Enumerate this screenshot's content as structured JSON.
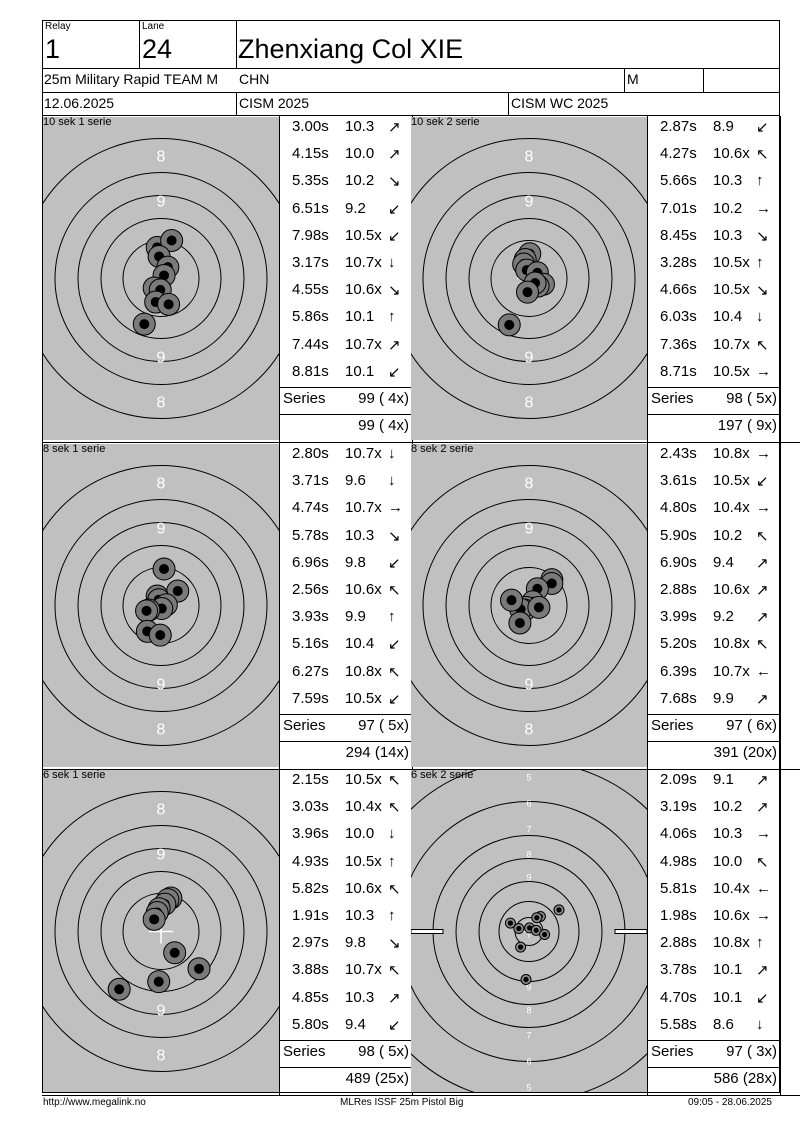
{
  "header": {
    "relay_label": "Relay",
    "relay": "1",
    "lane_label": "Lane",
    "lane": "24",
    "name": "Zhenxiang Col XIE",
    "event": "25m Military Rapid TEAM M",
    "country": "CHN",
    "gender": "M",
    "date": "12.06.2025",
    "competition": "CISM 2025",
    "match": "CISM WC 2025"
  },
  "series": [
    {
      "title": "10 sek 1 serie",
      "shots": [
        {
          "t": "3.00s",
          "v": "10.3",
          "dir": "↗"
        },
        {
          "t": "4.15s",
          "v": "10.0",
          "dir": "↗"
        },
        {
          "t": "5.35s",
          "v": "10.2",
          "dir": "↘"
        },
        {
          "t": "6.51s",
          "v": "9.2",
          "dir": "↙"
        },
        {
          "t": "7.98s",
          "v": "10.5x",
          "dir": "↙"
        },
        {
          "t": "3.17s",
          "v": "10.7x",
          "dir": "↓"
        },
        {
          "t": "4.55s",
          "v": "10.6x",
          "dir": "↘"
        },
        {
          "t": "5.86s",
          "v": "10.1",
          "dir": "↑"
        },
        {
          "t": "7.44s",
          "v": "10.7x",
          "dir": "↗"
        },
        {
          "t": "8.81s",
          "v": "10.1",
          "dir": "↙"
        }
      ],
      "series_label": "Series",
      "series_total": "99 ( 4x)",
      "cumulative": "99 ( 4x)",
      "impacts": [
        [
          -0.1,
          0.82
        ],
        [
          0.28,
          1.0
        ],
        [
          -0.05,
          0.58
        ],
        [
          0.18,
          0.3
        ],
        [
          0.08,
          0.08
        ],
        [
          -0.18,
          -0.25
        ],
        [
          -0.02,
          -0.3
        ],
        [
          -0.14,
          -0.62
        ],
        [
          0.2,
          -0.68
        ],
        [
          -0.44,
          -1.2
        ]
      ]
    },
    {
      "title": "10 sek 2 serie",
      "shots": [
        {
          "t": "2.87s",
          "v": "8.9",
          "dir": "↙"
        },
        {
          "t": "4.27s",
          "v": "10.6x",
          "dir": "↖"
        },
        {
          "t": "5.66s",
          "v": "10.3",
          "dir": "↑"
        },
        {
          "t": "7.01s",
          "v": "10.2",
          "dir": "→"
        },
        {
          "t": "8.45s",
          "v": "10.3",
          "dir": "↘"
        },
        {
          "t": "3.28s",
          "v": "10.5x",
          "dir": "↑"
        },
        {
          "t": "4.66s",
          "v": "10.5x",
          "dir": "↘"
        },
        {
          "t": "6.03s",
          "v": "10.4",
          "dir": "↓"
        },
        {
          "t": "7.36s",
          "v": "10.7x",
          "dir": "↖"
        },
        {
          "t": "8.71s",
          "v": "10.5x",
          "dir": "→"
        }
      ],
      "series_label": "Series",
      "series_total": "98 ( 5x)",
      "cumulative": "197 ( 9x)",
      "impacts": [
        [
          0.02,
          0.65
        ],
        [
          -0.1,
          0.5
        ],
        [
          -0.14,
          0.38
        ],
        [
          -0.06,
          0.22
        ],
        [
          0.22,
          0.15
        ],
        [
          0.38,
          -0.15
        ],
        [
          0.24,
          -0.2
        ],
        [
          0.16,
          -0.12
        ],
        [
          -0.04,
          -0.36
        ],
        [
          -0.52,
          -1.22
        ]
      ]
    },
    {
      "title": "8 sek 1 serie",
      "shots": [
        {
          "t": "2.80s",
          "v": "10.7x",
          "dir": "↓"
        },
        {
          "t": "3.71s",
          "v": "9.6",
          "dir": "↓"
        },
        {
          "t": "4.74s",
          "v": "10.7x",
          "dir": "→"
        },
        {
          "t": "5.78s",
          "v": "10.3",
          "dir": "↘"
        },
        {
          "t": "6.96s",
          "v": "9.8",
          "dir": "↙"
        },
        {
          "t": "2.56s",
          "v": "10.6x",
          "dir": "↖"
        },
        {
          "t": "3.93s",
          "v": "9.9",
          "dir": "↑"
        },
        {
          "t": "5.16s",
          "v": "10.4",
          "dir": "↙"
        },
        {
          "t": "6.27s",
          "v": "10.8x",
          "dir": "↖"
        },
        {
          "t": "7.59s",
          "v": "10.5x",
          "dir": "↙"
        }
      ],
      "series_label": "Series",
      "series_total": "97 ( 5x)",
      "cumulative": "294 (14x)",
      "impacts": [
        [
          0.08,
          0.96
        ],
        [
          0.44,
          0.38
        ],
        [
          -0.1,
          0.25
        ],
        [
          -0.06,
          0.15
        ],
        [
          0.14,
          0.02
        ],
        [
          0.02,
          -0.08
        ],
        [
          -0.32,
          -0.12
        ],
        [
          -0.38,
          -0.14
        ],
        [
          -0.36,
          -0.68
        ],
        [
          -0.02,
          -0.78
        ]
      ]
    },
    {
      "title": "8 sek 2 serie",
      "shots": [
        {
          "t": "2.43s",
          "v": "10.8x",
          "dir": "→"
        },
        {
          "t": "3.61s",
          "v": "10.5x",
          "dir": "↙"
        },
        {
          "t": "4.80s",
          "v": "10.4x",
          "dir": "→"
        },
        {
          "t": "5.90s",
          "v": "10.2",
          "dir": "↖"
        },
        {
          "t": "6.90s",
          "v": "9.4",
          "dir": "↗"
        },
        {
          "t": "2.88s",
          "v": "10.6x",
          "dir": "↗"
        },
        {
          "t": "3.99s",
          "v": "9.2",
          "dir": "↗"
        },
        {
          "t": "5.20s",
          "v": "10.8x",
          "dir": "↖"
        },
        {
          "t": "6.39s",
          "v": "10.7x",
          "dir": "←"
        },
        {
          "t": "7.68s",
          "v": "9.9",
          "dir": "↗"
        }
      ],
      "series_label": "Series",
      "series_total": "97 ( 6x)",
      "cumulative": "391 (20x)",
      "impacts": [
        [
          0.6,
          0.68
        ],
        [
          0.6,
          0.58
        ],
        [
          0.22,
          0.44
        ],
        [
          0.1,
          0.1
        ],
        [
          -0.08,
          -0.05
        ],
        [
          -0.12,
          -0.12
        ],
        [
          -0.22,
          -0.1
        ],
        [
          0.26,
          -0.05
        ],
        [
          -0.46,
          0.14
        ],
        [
          -0.24,
          -0.46
        ]
      ]
    },
    {
      "title": "6 sek 1 serie",
      "shots": [
        {
          "t": "2.15s",
          "v": "10.5x",
          "dir": "↖"
        },
        {
          "t": "3.03s",
          "v": "10.4x",
          "dir": "↖"
        },
        {
          "t": "3.96s",
          "v": "10.0",
          "dir": "↓"
        },
        {
          "t": "4.93s",
          "v": "10.5x",
          "dir": "↑"
        },
        {
          "t": "5.82s",
          "v": "10.6x",
          "dir": "↖"
        },
        {
          "t": "1.91s",
          "v": "10.3",
          "dir": "↑"
        },
        {
          "t": "2.97s",
          "v": "9.8",
          "dir": "↘"
        },
        {
          "t": "3.88s",
          "v": "10.7x",
          "dir": "↖"
        },
        {
          "t": "4.85s",
          "v": "10.3",
          "dir": "↗"
        },
        {
          "t": "5.80s",
          "v": "9.4",
          "dir": "↙"
        }
      ],
      "series_label": "Series",
      "series_total": "98 ( 5x)",
      "cumulative": "489 (25x)",
      "impacts": [
        [
          0.26,
          0.88
        ],
        [
          0.18,
          0.84
        ],
        [
          0.1,
          0.72
        ],
        [
          -0.05,
          0.6
        ],
        [
          -0.1,
          0.5
        ],
        [
          -0.18,
          0.32
        ],
        [
          0.36,
          -0.56
        ],
        [
          1.0,
          -0.98
        ],
        [
          -0.06,
          -1.32
        ],
        [
          -1.1,
          -1.52
        ]
      ]
    },
    {
      "title": "6 sek 2 serie",
      "shots": [
        {
          "t": "2.09s",
          "v": "9.1",
          "dir": "↗"
        },
        {
          "t": "3.19s",
          "v": "10.2",
          "dir": "↗"
        },
        {
          "t": "4.06s",
          "v": "10.3",
          "dir": "→"
        },
        {
          "t": "4.98s",
          "v": "10.0",
          "dir": "↖"
        },
        {
          "t": "5.81s",
          "v": "10.4x",
          "dir": "←"
        },
        {
          "t": "1.98s",
          "v": "10.6x",
          "dir": "→"
        },
        {
          "t": "2.88s",
          "v": "10.8x",
          "dir": "↑"
        },
        {
          "t": "3.78s",
          "v": "10.1",
          "dir": "↗"
        },
        {
          "t": "4.70s",
          "v": "10.1",
          "dir": "↙"
        },
        {
          "t": "5.58s",
          "v": "8.6",
          "dir": "↓"
        }
      ],
      "series_label": "Series",
      "series_total": "97 ( 3x)",
      "cumulative": "586 (28x)",
      "impacts": [
        [
          1.0,
          0.72
        ],
        [
          0.38,
          0.5
        ],
        [
          0.26,
          0.46
        ],
        [
          -0.62,
          0.28
        ],
        [
          0.02,
          0.12
        ],
        [
          -0.34,
          0.1
        ],
        [
          0.24,
          0.04
        ],
        [
          0.52,
          -0.1
        ],
        [
          -0.28,
          -0.52
        ],
        [
          -0.1,
          -1.6
        ]
      ]
    }
  ],
  "footer": {
    "left": "http://www.megalink.no",
    "center": "MLRes ISSF 25m Pistol Big",
    "right": "09:05 - 28.06.2025"
  },
  "colors": {
    "target_bg": "#c0c0c0",
    "hole_fill": "#000000",
    "hole_ring": "#8a8a8a"
  }
}
